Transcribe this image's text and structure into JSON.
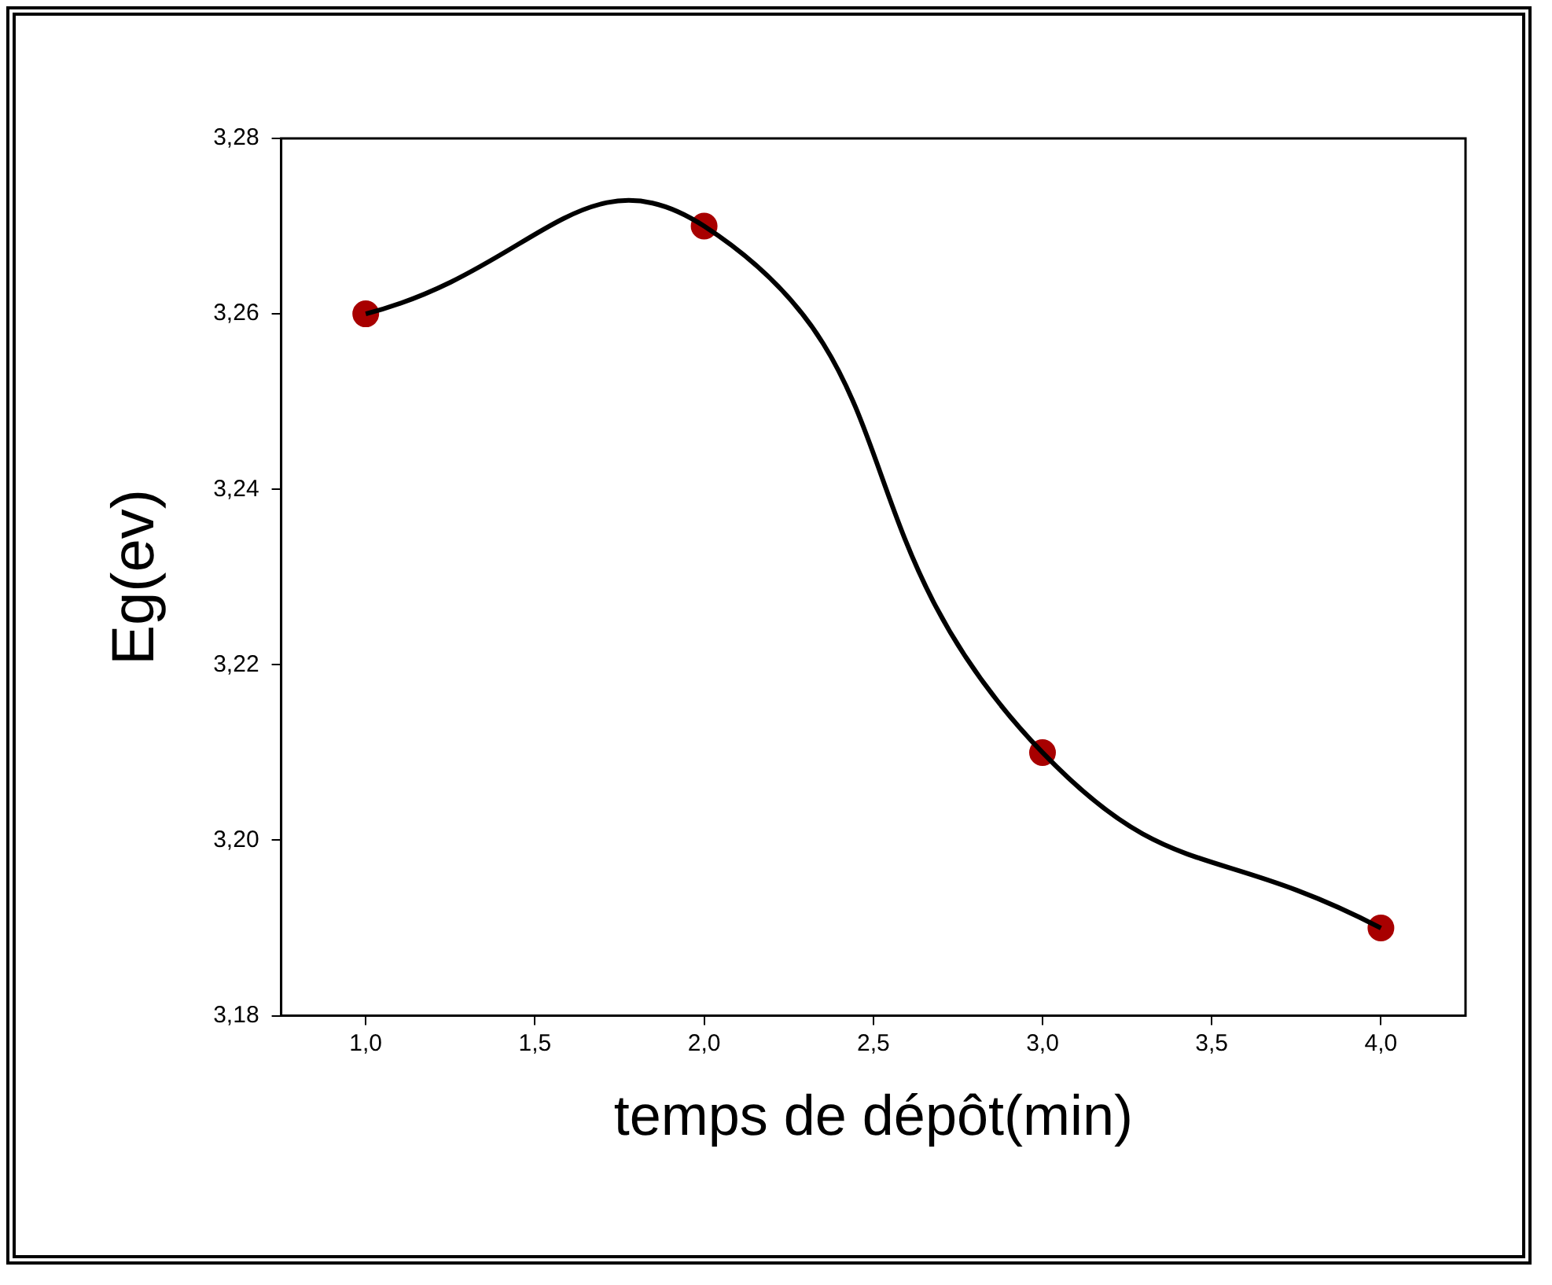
{
  "chart_data": {
    "type": "line",
    "xlabel": "temps de dépôt(min)",
    "ylabel": "Eg(ev)",
    "series": [
      {
        "color": "#000000",
        "marker": "none",
        "x": [
          1,
          2,
          3,
          4
        ],
        "values": [
          3.26,
          3.27,
          3.21,
          3.19
        ]
      },
      {
        "type": "scatter",
        "color": "#a80000",
        "marker": "circle",
        "x": [
          1,
          2,
          3,
          4
        ],
        "values": [
          3.26,
          3.27,
          3.21,
          3.19
        ]
      }
    ],
    "xlim": [
      0.75,
      4.25
    ],
    "ylim": [
      3.18,
      3.28
    ],
    "xticks": [
      {
        "value": 1,
        "label": "1,0"
      },
      {
        "value": 1.5,
        "label": "1,5"
      },
      {
        "value": 2,
        "label": "2,0"
      },
      {
        "value": 2.5,
        "label": "2,5"
      },
      {
        "value": 3,
        "label": "3,0"
      },
      {
        "value": 3.5,
        "label": "3,5"
      },
      {
        "value": 4,
        "label": "4,0"
      }
    ],
    "yticks": [
      {
        "value": 3.18,
        "label": "3,18"
      },
      {
        "value": 3.2,
        "label": "3,20"
      },
      {
        "value": 3.22,
        "label": "3,22"
      },
      {
        "value": 3.24,
        "label": "3,24"
      },
      {
        "value": 3.26,
        "label": "3,26"
      },
      {
        "value": 3.28,
        "label": "3,28"
      }
    ],
    "grid": false,
    "legend": false
  }
}
